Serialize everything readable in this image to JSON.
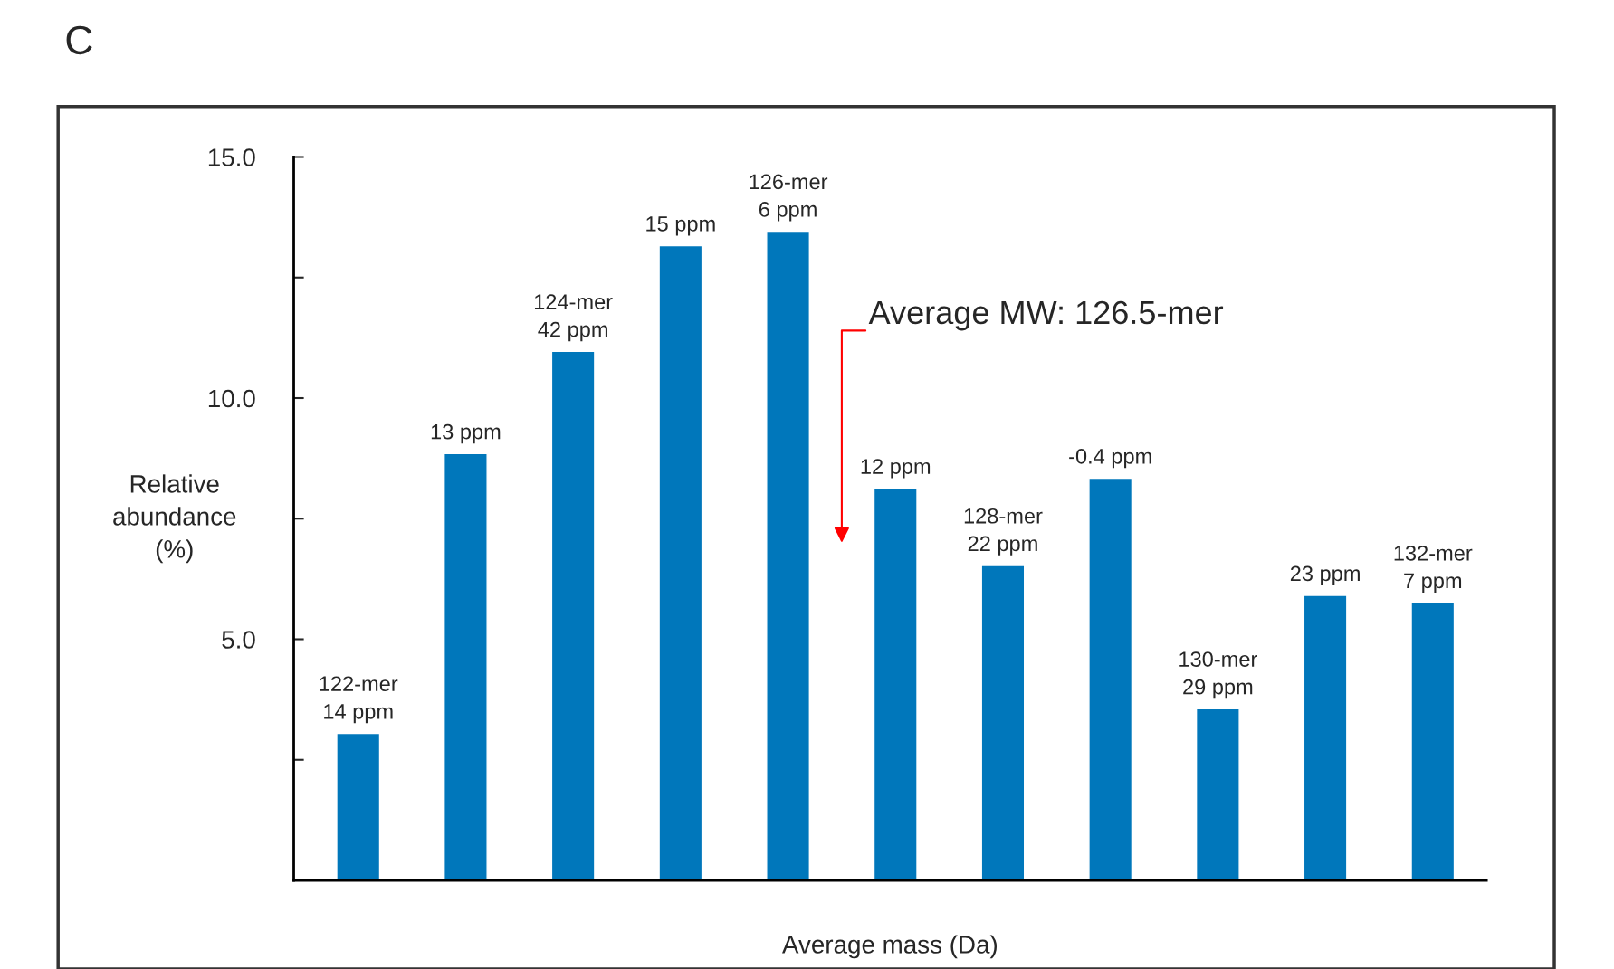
{
  "chart_data": {
    "type": "bar",
    "title": "C",
    "xlabel": "Average mass (Da)",
    "ylabel": "Relative\nabundance\n(%)",
    "categories": [
      null,
      null,
      null,
      null,
      null,
      null,
      null,
      null,
      null,
      null,
      null
    ],
    "values": [
      3.05,
      8.85,
      10.97,
      13.16,
      13.46,
      8.13,
      6.53,
      8.34,
      3.56,
      5.91,
      5.76
    ],
    "color": "#0077bb",
    "ylim": [
      0,
      15
    ],
    "yticks": [
      {
        "value": 2.5,
        "label": null
      },
      {
        "value": 5,
        "label": "5.0"
      },
      {
        "value": 7.5,
        "label": null
      },
      {
        "value": 10,
        "label": "10.0"
      },
      {
        "value": 12.5,
        "label": null
      },
      {
        "value": 15,
        "label": "15.0"
      }
    ],
    "annotations": [
      {
        "text": "122-mer\n14 ppm",
        "y": 3.05
      },
      {
        "text": "13 ppm",
        "y": 8.85
      },
      {
        "text": "124-mer\n42 ppm",
        "y": 10.97
      },
      {
        "text": "15 ppm",
        "y": 13.16
      },
      {
        "text": "126-mer\n6 ppm",
        "y": 13.46
      },
      {
        "text": "12 ppm",
        "y": 8.13
      },
      {
        "text": "128-mer\n22 ppm",
        "y": 6.53
      },
      {
        "text": "-0.4 ppm",
        "y": 8.34
      },
      {
        "text": "130-mer\n29 ppm",
        "y": 3.56
      },
      {
        "text": "23 ppm",
        "y": 5.91
      },
      {
        "text": "132-mer\n7 ppm",
        "y": 5.76
      },
      "Average MW: 126.5-mer"
    ],
    "grid": false,
    "legend": false
  }
}
